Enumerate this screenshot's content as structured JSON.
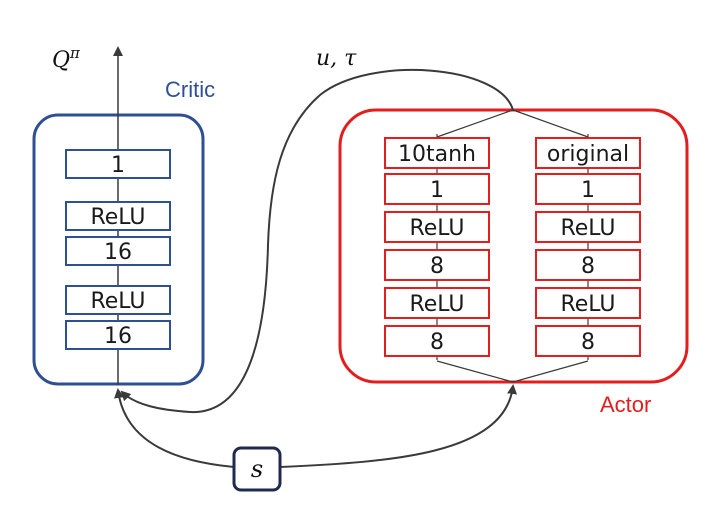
{
  "colors": {
    "critic": "#2f4f93",
    "actor": "#e21e1e",
    "layer_critic": "#2f4f93",
    "layer_actor": "#e21e1e",
    "edge": "#3a3a3a",
    "state_box": "#1f2a4f"
  },
  "critic": {
    "label": "Critic",
    "output_label": "Qπ",
    "layers": [
      "1",
      "ReLU",
      "16",
      "ReLU",
      "16"
    ]
  },
  "actor": {
    "label": "Actor",
    "output_label": "u, τ",
    "branches": [
      {
        "layers": [
          "10tanh",
          "1",
          "ReLU",
          "8",
          "ReLU",
          "8"
        ]
      },
      {
        "layers": [
          "original",
          "1",
          "ReLU",
          "8",
          "ReLU",
          "8"
        ]
      }
    ]
  },
  "state": {
    "label": "s"
  }
}
